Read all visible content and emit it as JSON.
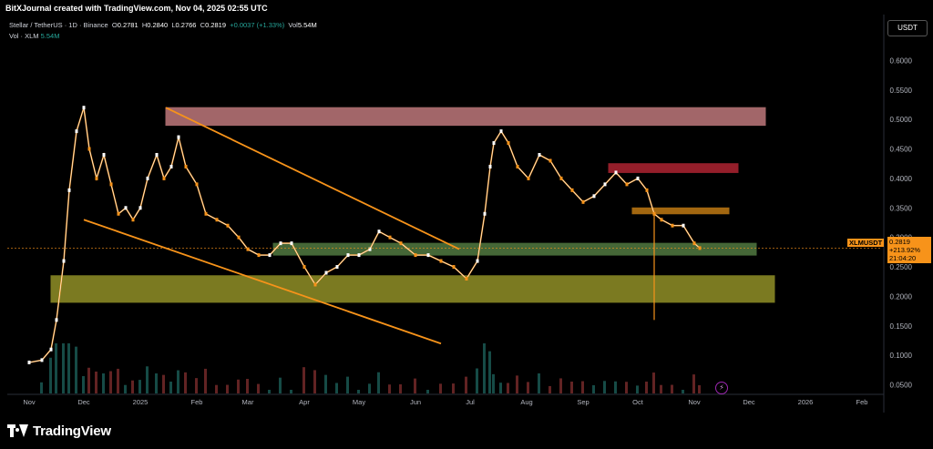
{
  "credit": "BitXJournal created with TradingView.com, Nov 04, 2025 02:55 UTC",
  "legend": {
    "symbol": "Stellar / TetherUS · 1D · Binance",
    "o_label": "O",
    "o": "0.2781",
    "h_label": "H",
    "h": "0.2840",
    "l_label": "L",
    "l": "0.2766",
    "c_label": "C",
    "c": "0.2819",
    "change": "+0.0037 (+1.33%)",
    "vol_label": "Vol",
    "vol": "5.54M",
    "vol2_label": "Vol · XLM",
    "vol2": "5.54M"
  },
  "currency_button": "USDT",
  "price_tag": {
    "symbol": "XLMUSDT",
    "price": "0.2819",
    "change": "+213.92%",
    "countdown": "21:04:20"
  },
  "footer_logo": "TradingView",
  "event_icon": "lightning-icon",
  "colors": {
    "bull": "#ffffff",
    "bear": "#f7931a",
    "trend": "#f7931a",
    "zone_top": "#d9888c",
    "zone_red": "#c62839",
    "zone_orange": "#d98a16",
    "zone_green": "#5c8a4a",
    "zone_yellow": "#a4a32c"
  },
  "chart_data": {
    "type": "line",
    "title": "Stellar / TetherUS · 1D · Binance",
    "ylabel": "USDT",
    "ylim": [
      0.02,
      0.65
    ],
    "x_ticks": [
      "Nov",
      "Dec",
      "2025",
      "Feb",
      "Mar",
      "Apr",
      "May",
      "Jun",
      "Jul",
      "Aug",
      "Sep",
      "Oct",
      "Nov",
      "Dec",
      "2026",
      "Feb"
    ],
    "y_ticks": [
      "0.6000",
      "0.5500",
      "0.5000",
      "0.4500",
      "0.4000",
      "0.3500",
      "0.3000",
      "0.2500",
      "0.2000",
      "0.1500",
      "0.1000",
      "0.0500"
    ],
    "series": [
      {
        "x": [
          "2024-11-01",
          "2024-11-08",
          "2024-11-13",
          "2024-11-16",
          "2024-11-20",
          "2024-11-23",
          "2024-11-27",
          "2024-12-01",
          "2024-12-04",
          "2024-12-08",
          "2024-12-12",
          "2024-12-16",
          "2024-12-20",
          "2024-12-24",
          "2024-12-28",
          "2025-01-01",
          "2025-01-05",
          "2025-01-10",
          "2025-01-14",
          "2025-01-18",
          "2025-01-22",
          "2025-01-26",
          "2025-02-01",
          "2025-02-06",
          "2025-02-12",
          "2025-02-18",
          "2025-02-24",
          "2025-03-01",
          "2025-03-07",
          "2025-03-13",
          "2025-03-19",
          "2025-03-25",
          "2025-04-01",
          "2025-04-07",
          "2025-04-13",
          "2025-04-19",
          "2025-04-25",
          "2025-05-01",
          "2025-05-07",
          "2025-05-12",
          "2025-05-18",
          "2025-05-24",
          "2025-06-01",
          "2025-06-08",
          "2025-06-15",
          "2025-06-22",
          "2025-06-29",
          "2025-07-05",
          "2025-07-09",
          "2025-07-12",
          "2025-07-14",
          "2025-07-18",
          "2025-07-22",
          "2025-07-27",
          "2025-08-02",
          "2025-08-08",
          "2025-08-14",
          "2025-08-20",
          "2025-08-26",
          "2025-09-01",
          "2025-09-07",
          "2025-09-13",
          "2025-09-19",
          "2025-09-25",
          "2025-10-01",
          "2025-10-06",
          "2025-10-10",
          "2025-10-14",
          "2025-10-20",
          "2025-10-26",
          "2025-11-01",
          "2025-11-04"
        ],
        "values": [
          0.088,
          0.092,
          0.11,
          0.16,
          0.26,
          0.38,
          0.48,
          0.52,
          0.45,
          0.4,
          0.44,
          0.39,
          0.34,
          0.35,
          0.33,
          0.35,
          0.4,
          0.44,
          0.4,
          0.42,
          0.47,
          0.42,
          0.39,
          0.34,
          0.33,
          0.32,
          0.3,
          0.28,
          0.27,
          0.27,
          0.29,
          0.29,
          0.25,
          0.22,
          0.24,
          0.25,
          0.27,
          0.27,
          0.28,
          0.31,
          0.3,
          0.29,
          0.27,
          0.27,
          0.26,
          0.25,
          0.23,
          0.26,
          0.34,
          0.42,
          0.46,
          0.48,
          0.46,
          0.42,
          0.4,
          0.44,
          0.43,
          0.4,
          0.38,
          0.36,
          0.37,
          0.39,
          0.41,
          0.39,
          0.4,
          0.38,
          0.34,
          0.33,
          0.32,
          0.32,
          0.29,
          0.2819
        ]
      }
    ],
    "zones": [
      {
        "from_date": "2025-01-15",
        "to_date": "2025-12-10",
        "low": 0.49,
        "high": 0.52,
        "color": "zone_top"
      },
      {
        "from_date": "2025-09-15",
        "to_date": "2025-11-25",
        "low": 0.41,
        "high": 0.425,
        "color": "zone_red"
      },
      {
        "from_date": "2025-09-28",
        "to_date": "2025-11-20",
        "low": 0.34,
        "high": 0.35,
        "color": "zone_orange"
      },
      {
        "from_date": "2025-03-15",
        "to_date": "2025-12-05",
        "low": 0.27,
        "high": 0.29,
        "color": "zone_green"
      },
      {
        "from_date": "2024-11-13",
        "to_date": "2025-12-15",
        "low": 0.19,
        "high": 0.235,
        "color": "zone_yellow"
      }
    ],
    "trendlines": [
      {
        "x1": "2025-01-15",
        "y1": 0.52,
        "x2": "2025-06-25",
        "y2": 0.28
      },
      {
        "x1": "2024-12-01",
        "y1": 0.33,
        "x2": "2025-06-15",
        "y2": 0.12
      }
    ],
    "wick": {
      "date": "2025-10-10",
      "low": 0.16,
      "high": 0.34
    },
    "grid": false,
    "legend": "top-left"
  }
}
